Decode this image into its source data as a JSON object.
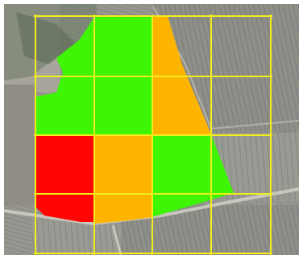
{
  "map": {
    "kind": "aerial field zone map",
    "grid": {
      "columns": 4,
      "rows": 4
    },
    "zones": [
      {
        "name": "zone-green",
        "color": "#3df505"
      },
      {
        "name": "zone-orange",
        "color": "#ffb400"
      },
      {
        "name": "zone-red",
        "color": "#ff0505"
      }
    ],
    "colors": {
      "grid_line": "#f2ee1a",
      "frame": "#ffffff",
      "imagery_base": "#8b8b86"
    }
  }
}
